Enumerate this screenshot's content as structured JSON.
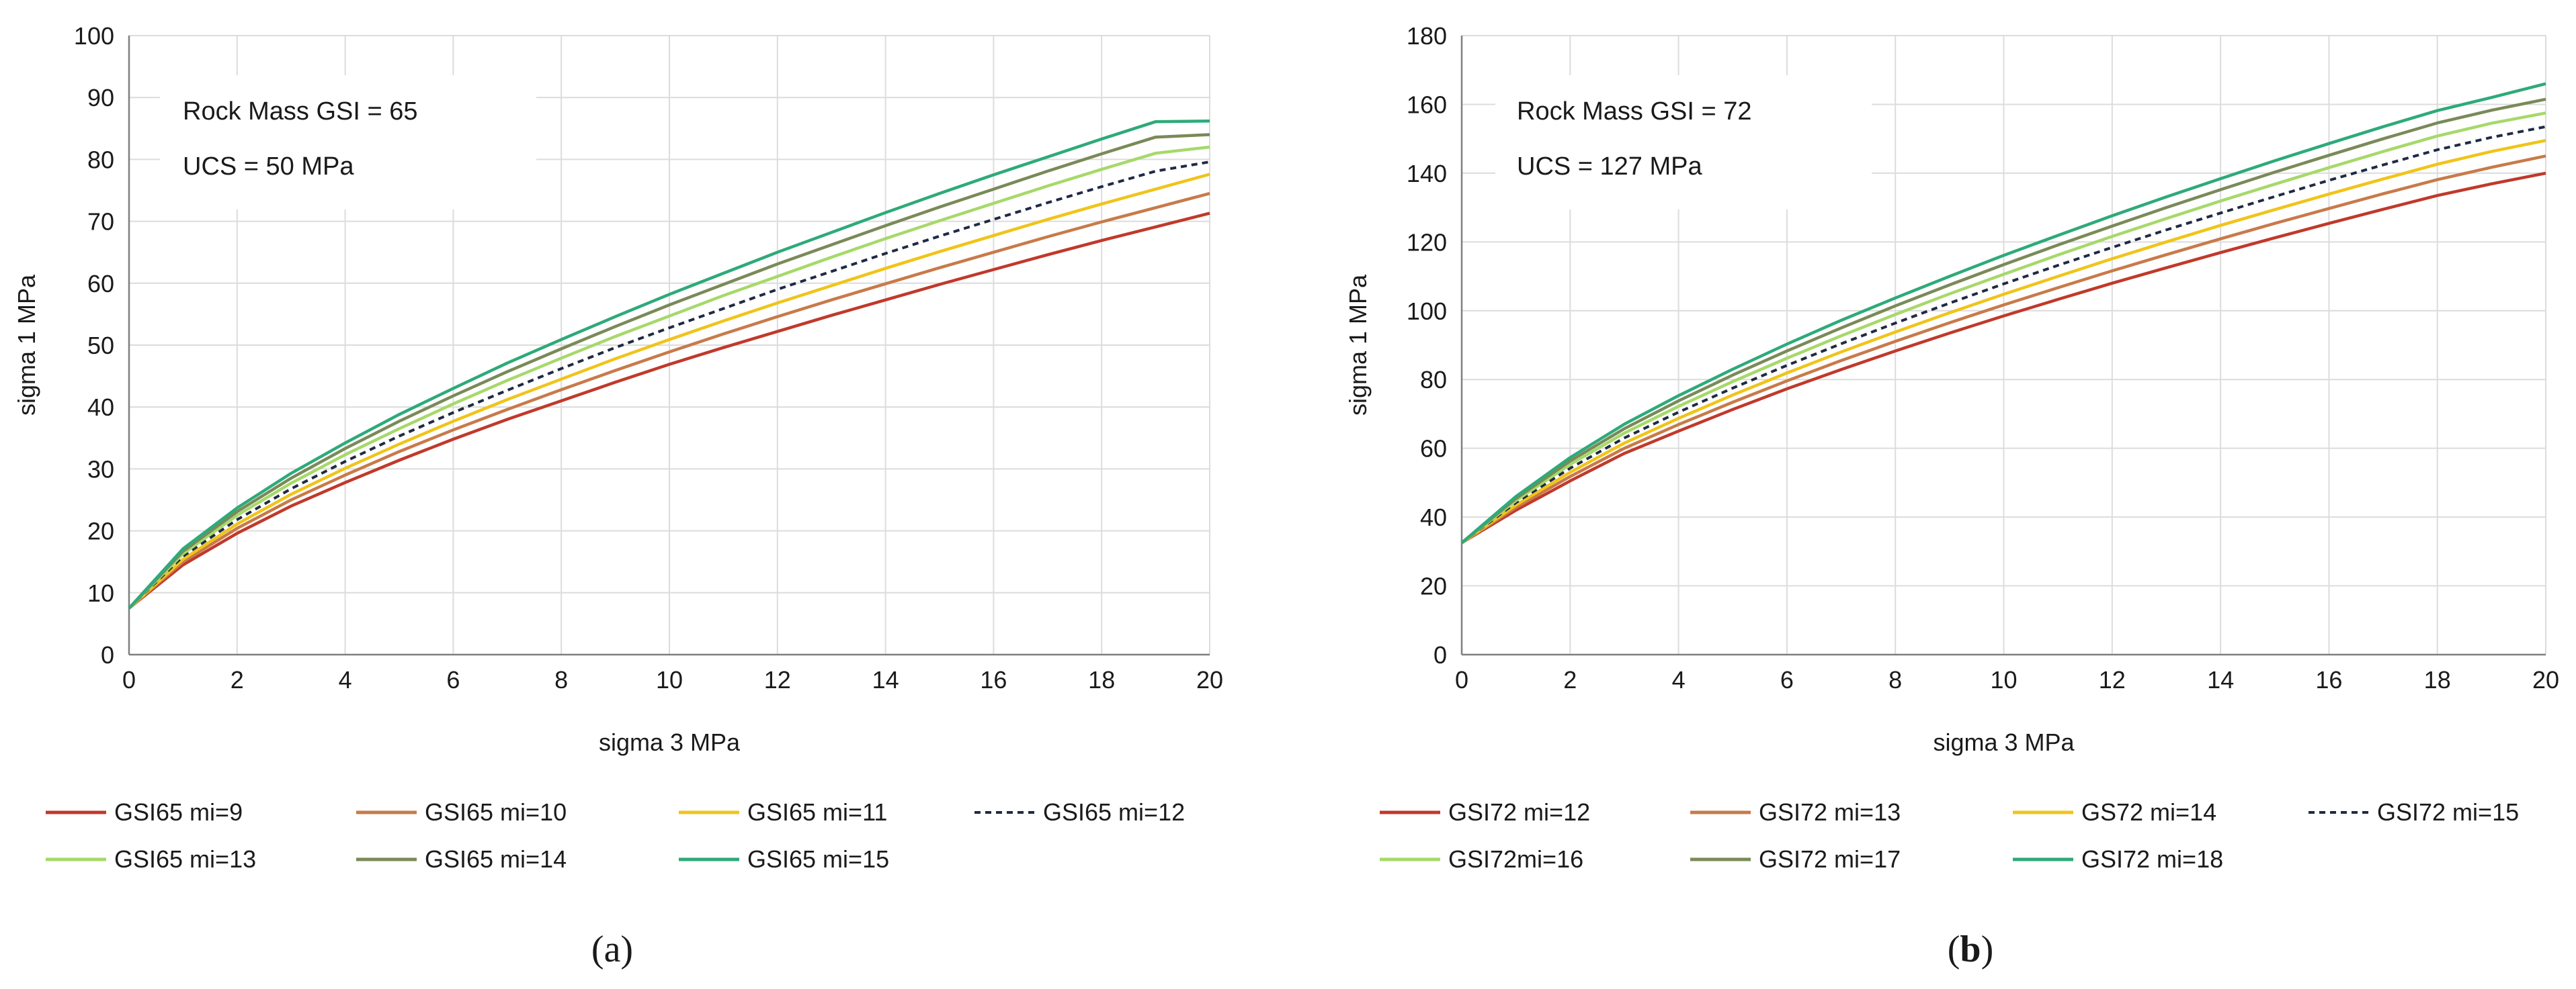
{
  "chart_data": [
    {
      "type": "line",
      "annotation": [
        "Rock Mass GSI = 65",
        "UCS = 50 MPa"
      ],
      "xlabel": "sigma 3 MPa",
      "ylabel": "sigma 1 MPa",
      "xlim": [
        0,
        20
      ],
      "ylim": [
        0,
        100
      ],
      "xticks": [
        0,
        2,
        4,
        6,
        8,
        10,
        12,
        14,
        16,
        18,
        20
      ],
      "yticks": [
        0,
        10,
        20,
        30,
        40,
        50,
        60,
        70,
        80,
        90,
        100
      ],
      "grid": true,
      "legend_position": "bottom",
      "caption": "(a)",
      "caption_parts": [
        "(",
        "a",
        ")"
      ],
      "x": [
        0,
        1,
        2,
        3,
        4,
        5,
        6,
        7,
        8,
        9,
        10,
        11,
        12,
        13,
        14,
        15,
        16,
        17,
        18,
        19,
        20
      ],
      "series": [
        {
          "name": "GSI65 mi=9",
          "color": "#c0392b",
          "dashed": false,
          "values": [
            7.5,
            14.5,
            19.6,
            24.0,
            27.8,
            31.4,
            34.8,
            38.0,
            41.0,
            44.0,
            46.9,
            49.6,
            52.2,
            54.8,
            57.3,
            59.8,
            62.2,
            64.6,
            66.9,
            69.1,
            71.3
          ]
        },
        {
          "name": "GSI65 mi=10",
          "color": "#c87a4a",
          "dashed": false,
          "values": [
            7.5,
            15.0,
            20.4,
            25.0,
            29.0,
            32.8,
            36.3,
            39.6,
            42.8,
            45.9,
            48.9,
            51.8,
            54.6,
            57.3,
            59.9,
            62.5,
            65.0,
            67.5,
            69.9,
            72.2,
            74.5
          ]
        },
        {
          "name": "GSI65 mi=11",
          "color": "#f0c419",
          "dashed": false,
          "values": [
            7.5,
            15.4,
            21.1,
            25.9,
            30.1,
            34.0,
            37.7,
            41.2,
            44.5,
            47.8,
            50.9,
            53.9,
            56.8,
            59.6,
            62.4,
            65.1,
            67.7,
            70.3,
            72.8,
            75.2,
            77.6
          ]
        },
        {
          "name": "GSI65 mi=12",
          "color": "#1f2a44",
          "dashed": true,
          "values": [
            7.5,
            15.9,
            21.8,
            26.8,
            31.2,
            35.3,
            39.1,
            42.7,
            46.2,
            49.6,
            52.8,
            55.9,
            59.0,
            61.9,
            64.8,
            67.6,
            70.3,
            73.0,
            75.6,
            78.1,
            79.6
          ]
        },
        {
          "name": "GSI65 mi=13",
          "color": "#a6d96a",
          "dashed": false,
          "values": [
            7.5,
            16.3,
            22.5,
            27.7,
            32.3,
            36.5,
            40.5,
            44.3,
            47.9,
            51.4,
            54.7,
            58.0,
            61.1,
            64.2,
            67.2,
            70.1,
            72.9,
            75.7,
            78.4,
            81.0,
            82.0
          ]
        },
        {
          "name": "GSI65 mi=14",
          "color": "#7a8a58",
          "dashed": false,
          "values": [
            7.5,
            16.7,
            23.1,
            28.5,
            33.3,
            37.7,
            41.8,
            45.7,
            49.4,
            53.0,
            56.5,
            59.8,
            63.1,
            66.2,
            69.3,
            72.3,
            75.2,
            78.1,
            80.9,
            83.6,
            84.0
          ]
        },
        {
          "name": "GSI65 mi=15",
          "color": "#2eaa7a",
          "dashed": false,
          "values": [
            7.5,
            17.1,
            23.7,
            29.3,
            34.2,
            38.8,
            43.0,
            47.1,
            50.9,
            54.6,
            58.2,
            61.6,
            65.0,
            68.2,
            71.4,
            74.5,
            77.5,
            80.4,
            83.3,
            86.1,
            86.2
          ]
        }
      ]
    },
    {
      "type": "line",
      "annotation": [
        "Rock Mass GSI = 72",
        "UCS = 127 MPa"
      ],
      "xlabel": "sigma 3 MPa",
      "ylabel": "sigma 1 MPa",
      "xlim": [
        0,
        20
      ],
      "ylim": [
        0,
        180
      ],
      "xticks": [
        0,
        2,
        4,
        6,
        8,
        10,
        12,
        14,
        16,
        18,
        20
      ],
      "yticks": [
        0,
        20,
        40,
        60,
        80,
        100,
        120,
        140,
        160,
        180
      ],
      "grid": true,
      "legend_position": "bottom",
      "caption": "(b)",
      "caption_parts": [
        "(",
        "b",
        ")"
      ],
      "x": [
        0,
        1,
        2,
        3,
        4,
        5,
        6,
        7,
        8,
        9,
        10,
        11,
        12,
        13,
        14,
        15,
        16,
        17,
        18,
        19,
        20
      ],
      "series": [
        {
          "name": "GSI72 mi=12",
          "color": "#c0392b",
          "dashed": false,
          "values": [
            32.5,
            42.0,
            50.5,
            58.5,
            65.0,
            71.3,
            77.3,
            82.9,
            88.3,
            93.5,
            98.5,
            103.3,
            108.0,
            112.5,
            116.9,
            121.2,
            125.4,
            129.5,
            133.5,
            136.9,
            140.0
          ]
        },
        {
          "name": "GSI72 mi=13",
          "color": "#c87a4a",
          "dashed": false,
          "values": [
            32.5,
            42.8,
            51.8,
            60.0,
            66.9,
            73.4,
            79.6,
            85.5,
            91.1,
            96.5,
            101.7,
            106.7,
            111.6,
            116.3,
            120.9,
            125.4,
            129.7,
            134.0,
            138.1,
            141.7,
            145.0
          ]
        },
        {
          "name": "GS72 mi=14",
          "color": "#f0c419",
          "dashed": false,
          "values": [
            32.5,
            43.5,
            53.0,
            61.5,
            68.7,
            75.5,
            81.9,
            88.0,
            93.8,
            99.4,
            104.8,
            110.0,
            115.1,
            120.0,
            124.8,
            129.4,
            133.9,
            138.3,
            142.6,
            146.3,
            149.5
          ]
        },
        {
          "name": "GSI72 mi=15",
          "color": "#1f2a44",
          "dashed": true,
          "values": [
            32.5,
            44.2,
            54.2,
            63.0,
            70.5,
            77.5,
            84.1,
            90.4,
            96.4,
            102.2,
            107.8,
            113.2,
            118.4,
            123.5,
            128.4,
            133.2,
            137.9,
            142.4,
            146.8,
            150.4,
            153.5
          ]
        },
        {
          "name": "GSI72mi=16",
          "color": "#a6d96a",
          "dashed": false,
          "values": [
            32.5,
            44.8,
            55.3,
            64.4,
            72.2,
            79.4,
            86.2,
            92.7,
            98.9,
            104.9,
            110.6,
            116.2,
            121.6,
            126.8,
            131.9,
            136.8,
            141.6,
            146.3,
            150.8,
            154.5,
            157.5
          ]
        },
        {
          "name": "GSI72 mi=17",
          "color": "#7a8a58",
          "dashed": false,
          "values": [
            32.5,
            45.4,
            56.3,
            65.7,
            73.8,
            81.3,
            88.3,
            95.0,
            101.4,
            107.5,
            113.4,
            119.1,
            124.6,
            130.0,
            135.2,
            140.3,
            145.2,
            150.0,
            154.6,
            158.3,
            161.5
          ]
        },
        {
          "name": "GSI72 mi=18",
          "color": "#2eaa7a",
          "dashed": false,
          "values": [
            32.5,
            46.0,
            57.3,
            67.0,
            75.3,
            83.0,
            90.3,
            97.2,
            103.7,
            110.0,
            116.1,
            121.9,
            127.6,
            133.1,
            138.4,
            143.6,
            148.6,
            153.5,
            158.2,
            162.0,
            166.0
          ]
        }
      ]
    }
  ]
}
